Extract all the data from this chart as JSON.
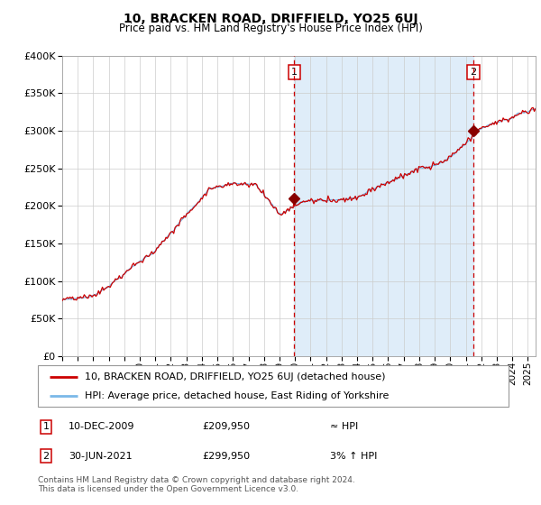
{
  "title": "10, BRACKEN ROAD, DRIFFIELD, YO25 6UJ",
  "subtitle": "Price paid vs. HM Land Registry's House Price Index (HPI)",
  "legend_line1": "10, BRACKEN ROAD, DRIFFIELD, YO25 6UJ (detached house)",
  "legend_line2": "HPI: Average price, detached house, East Riding of Yorkshire",
  "annotation1_date": "10-DEC-2009",
  "annotation1_price": "£209,950",
  "annotation1_note": "≈ HPI",
  "annotation2_date": "30-JUN-2021",
  "annotation2_price": "£299,950",
  "annotation2_note": "3% ↑ HPI",
  "footnote": "Contains HM Land Registry data © Crown copyright and database right 2024.\nThis data is licensed under the Open Government Licence v3.0.",
  "sale1_year": 2009.95,
  "sale1_value": 209950,
  "sale2_year": 2021.5,
  "sale2_value": 299950,
  "hpi_color": "#7ab8e8",
  "price_color": "#cc0000",
  "marker_color": "#880000",
  "dashed_color": "#cc0000",
  "bg_shaded_color": "#daeaf8",
  "ylim": [
    0,
    400000
  ],
  "xlim_start": 1995.0,
  "xlim_end": 2025.5
}
